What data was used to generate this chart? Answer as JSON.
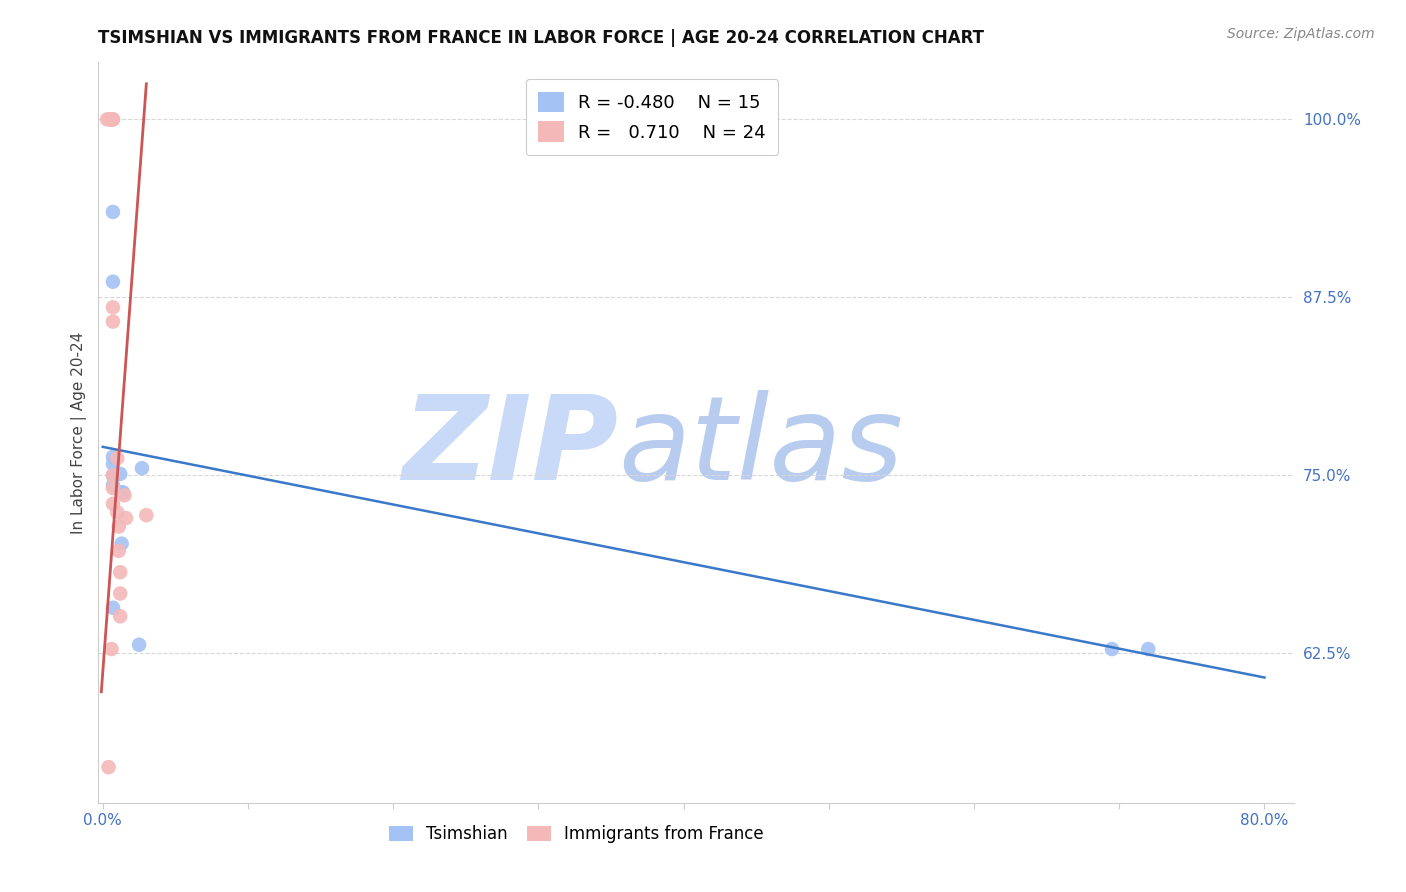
{
  "title": "TSIMSHIAN VS IMMIGRANTS FROM FRANCE IN LABOR FORCE | AGE 20-24 CORRELATION CHART",
  "source": "Source: ZipAtlas.com",
  "ylabel": "In Labor Force | Age 20-24",
  "xlim": [
    -0.003,
    0.82
  ],
  "ylim": [
    0.52,
    1.04
  ],
  "xticks": [
    0.0,
    0.1,
    0.2,
    0.3,
    0.4,
    0.5,
    0.6,
    0.7,
    0.8
  ],
  "xticklabels": [
    "0.0%",
    "",
    "",
    "",
    "",
    "",
    "",
    "",
    "80.0%"
  ],
  "yticks": [
    0.625,
    0.75,
    0.875,
    1.0
  ],
  "yticklabels": [
    "62.5%",
    "75.0%",
    "87.5%",
    "100.0%"
  ],
  "legend_R_blue": "-0.480",
  "legend_N_blue": "15",
  "legend_R_pink": "0.710",
  "legend_N_pink": "24",
  "blue_scatter_color": "#a4c2f4",
  "pink_scatter_color": "#f4b8b8",
  "blue_line_color": "#3a78c9",
  "pink_line_color": "#cc5555",
  "watermark_zip_color": "#c9daf8",
  "watermark_atlas_color": "#b8ccf0",
  "tsimshian_x": [
    0.007,
    0.007,
    0.007,
    0.007,
    0.007,
    0.007,
    0.007,
    0.012,
    0.013,
    0.013,
    0.014,
    0.025,
    0.027,
    0.695,
    0.72
  ],
  "tsimshian_y": [
    0.935,
    0.886,
    0.763,
    0.758,
    0.75,
    0.743,
    0.657,
    0.751,
    0.738,
    0.702,
    0.738,
    0.631,
    0.755,
    0.628,
    0.628
  ],
  "france_x": [
    0.003,
    0.005,
    0.006,
    0.006,
    0.006,
    0.007,
    0.007,
    0.007,
    0.007,
    0.007,
    0.007,
    0.007,
    0.01,
    0.01,
    0.011,
    0.011,
    0.012,
    0.012,
    0.012,
    0.015,
    0.016,
    0.03,
    0.006,
    0.004
  ],
  "france_y": [
    1.0,
    1.0,
    1.0,
    1.0,
    1.0,
    1.0,
    1.0,
    0.868,
    0.858,
    0.75,
    0.741,
    0.73,
    0.762,
    0.724,
    0.714,
    0.697,
    0.682,
    0.667,
    0.651,
    0.736,
    0.72,
    0.722,
    0.628,
    0.545
  ],
  "blue_trend_x0": 0.0,
  "blue_trend_x1": 0.8,
  "blue_trend_y0": 0.77,
  "blue_trend_y1": 0.608,
  "pink_trend_x0": -0.001,
  "pink_trend_x1": 0.03,
  "pink_trend_y0": 0.598,
  "pink_trend_y1": 1.025,
  "grid_color": "#d8d8d8",
  "spine_color": "#cccccc",
  "title_fontsize": 12,
  "source_fontsize": 10,
  "tick_fontsize": 11,
  "legend_fontsize": 13,
  "scatter_size": 110
}
